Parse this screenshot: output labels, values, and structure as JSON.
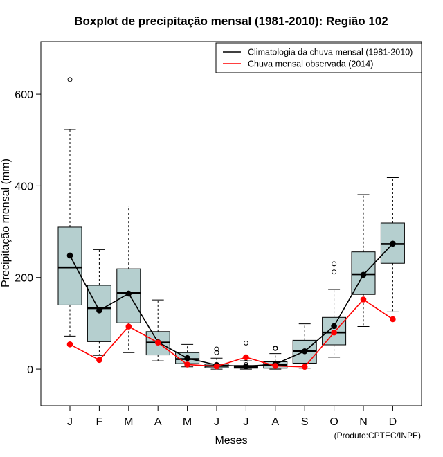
{
  "chart_data": {
    "type": "boxplot",
    "title": "Boxplot de precipitação mensal (1981-2010): Região 102",
    "xlabel": "Meses",
    "ylabel": "Precipitação mensal (mm)",
    "ylim": [
      -80,
      715
    ],
    "yticks": [
      0,
      200,
      400,
      600
    ],
    "categories": [
      "J",
      "F",
      "M",
      "A",
      "M",
      "J",
      "J",
      "A",
      "S",
      "O",
      "N",
      "D"
    ],
    "boxes": [
      {
        "min": 72,
        "q1": 140,
        "median": 222,
        "q3": 310,
        "max": 523,
        "outliers": [
          632
        ]
      },
      {
        "min": 30,
        "q1": 60,
        "median": 133,
        "q3": 183,
        "max": 261,
        "outliers": []
      },
      {
        "min": 36,
        "q1": 101,
        "median": 166,
        "q3": 219,
        "max": 356,
        "outliers": []
      },
      {
        "min": 18,
        "q1": 31,
        "median": 58,
        "q3": 82,
        "max": 151,
        "outliers": []
      },
      {
        "min": 5,
        "q1": 12,
        "median": 22,
        "q3": 36,
        "max": 54,
        "outliers": []
      },
      {
        "min": 0,
        "q1": 3,
        "median": 7,
        "q3": 11,
        "max": 24,
        "outliers": [
          36,
          44
        ]
      },
      {
        "min": 0,
        "q1": 2,
        "median": 5,
        "q3": 8,
        "max": 18,
        "outliers": [
          10,
          15,
          57
        ]
      },
      {
        "min": 0,
        "q1": 2,
        "median": 9,
        "q3": 16,
        "max": 34,
        "outliers": [
          45,
          46
        ]
      },
      {
        "min": 2,
        "q1": 13,
        "median": 39,
        "q3": 63,
        "max": 99,
        "outliers": []
      },
      {
        "min": 26,
        "q1": 53,
        "median": 80,
        "q3": 113,
        "max": 174,
        "outliers": [
          212,
          230
        ]
      },
      {
        "min": 93,
        "q1": 163,
        "median": 207,
        "q3": 256,
        "max": 381,
        "outliers": []
      },
      {
        "min": 125,
        "q1": 231,
        "median": 273,
        "q3": 319,
        "max": 418,
        "outliers": []
      }
    ],
    "series": [
      {
        "name": "Climatologia da chuva mensal (1981-2010)",
        "color": "#000000",
        "values": [
          248,
          128,
          165,
          59,
          24,
          9,
          6,
          11,
          39,
          94,
          206,
          274
        ]
      },
      {
        "name": "Chuva mensal observada (2014)",
        "color": "#ff0000",
        "values": [
          54,
          20,
          93,
          58,
          10,
          6,
          26,
          7,
          5,
          80,
          152,
          109
        ]
      }
    ],
    "box_fill": "#b5cfcf",
    "legend_position": "top-right",
    "credit": "(Produto:CPTEC/INPE)"
  }
}
